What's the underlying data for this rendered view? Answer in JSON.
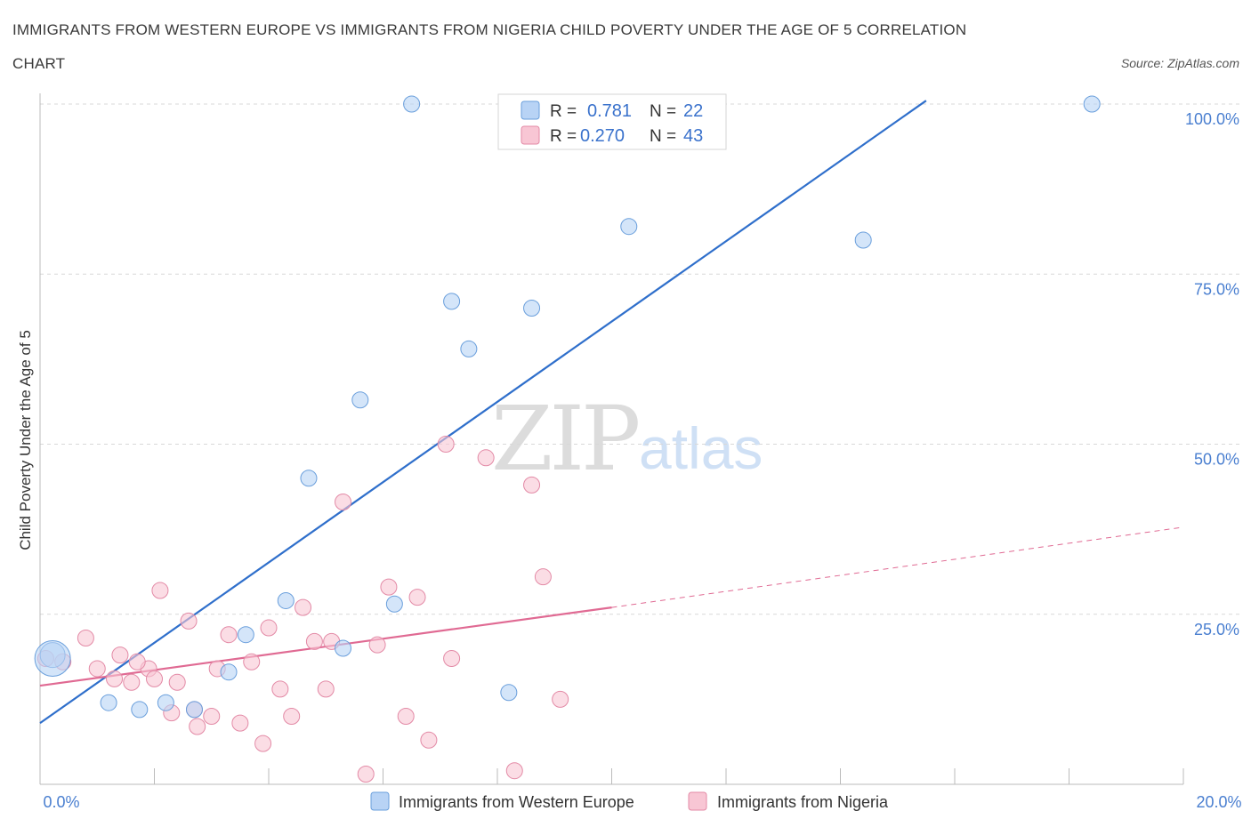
{
  "title_line1": "IMMIGRANTS FROM WESTERN EUROPE VS IMMIGRANTS FROM NIGERIA CHILD POVERTY UNDER THE AGE OF 5 CORRELATION",
  "title_line2": "CHART",
  "source": "Source: ZipAtlas.com",
  "watermark": {
    "zip": "ZIP",
    "atlas": "atlas"
  },
  "colors": {
    "blue_fill": "#b8d3f5",
    "blue_stroke": "#6a9fdc",
    "blue_line": "#2f6fcb",
    "pink_fill": "#f8c6d4",
    "pink_stroke": "#e38aa6",
    "pink_line": "#e06a93",
    "grid": "#d8d8d8",
    "axis": "#bbbbbb"
  },
  "legend": {
    "r_label": "R =",
    "n_label": "N =",
    "entries": [
      {
        "series": "Immigrants from Western Europe",
        "r": "0.781",
        "n": "22"
      },
      {
        "series": "Immigrants from Nigeria",
        "r": "0.270",
        "n": "43"
      }
    ]
  },
  "chart_data": {
    "type": "scatter",
    "title": "IMMIGRANTS FROM WESTERN EUROPE VS IMMIGRANTS FROM NIGERIA CHILD POVERTY UNDER THE AGE OF 5 CORRELATION CHART",
    "xlabel": "",
    "ylabel": "Child Poverty Under the Age of 5",
    "xlim": [
      0,
      20
    ],
    "ylim": [
      0,
      100
    ],
    "x_tick_labels": [
      {
        "value": 0,
        "label": "0.0%"
      },
      {
        "value": 20,
        "label": "20.0%"
      }
    ],
    "y_tick_labels": [
      {
        "value": 25,
        "label": "25.0%"
      },
      {
        "value": 50,
        "label": "50.0%"
      },
      {
        "value": 75,
        "label": "75.0%"
      },
      {
        "value": 100,
        "label": "100.0%"
      }
    ],
    "grid": "horizontal dashed",
    "legend_position": "top-center",
    "series": [
      {
        "name": "Immigrants from Western Europe",
        "color": "#b8d3f5",
        "points": [
          [
            0.22,
            19.0
          ],
          [
            0.22,
            18.5
          ],
          [
            1.2,
            12.0
          ],
          [
            1.74,
            11.0
          ],
          [
            2.2,
            12.0
          ],
          [
            2.7,
            11.0
          ],
          [
            3.3,
            16.5
          ],
          [
            3.6,
            22.0
          ],
          [
            4.3,
            27.0
          ],
          [
            4.7,
            45.0
          ],
          [
            5.3,
            20.0
          ],
          [
            5.6,
            56.5
          ],
          [
            6.2,
            26.5
          ],
          [
            6.5,
            100.0
          ],
          [
            7.2,
            71.0
          ],
          [
            7.5,
            64.0
          ],
          [
            8.2,
            13.5
          ],
          [
            8.6,
            70.0
          ],
          [
            9.0,
            100.0
          ],
          [
            10.3,
            82.0
          ],
          [
            14.4,
            80.0
          ],
          [
            18.4,
            100.0
          ]
        ],
        "sizes": [
          14,
          20,
          9,
          9,
          9,
          9,
          9,
          9,
          9,
          9,
          9,
          9,
          9,
          9,
          9,
          9,
          9,
          9,
          9,
          9,
          9,
          9
        ],
        "trend": {
          "x": [
            0,
            15.5
          ],
          "y": [
            9.0,
            100.5
          ]
        }
      },
      {
        "name": "Immigrants from Nigeria",
        "color": "#f8c6d4",
        "points": [
          [
            0.4,
            18.0
          ],
          [
            0.8,
            21.5
          ],
          [
            1.0,
            17.0
          ],
          [
            1.3,
            15.5
          ],
          [
            1.6,
            15.0
          ],
          [
            1.4,
            19.0
          ],
          [
            1.9,
            17.0
          ],
          [
            2.0,
            15.5
          ],
          [
            2.1,
            28.5
          ],
          [
            2.3,
            10.5
          ],
          [
            2.6,
            24.0
          ],
          [
            2.7,
            11.0
          ],
          [
            2.75,
            8.5
          ],
          [
            3.0,
            10.0
          ],
          [
            3.1,
            17.0
          ],
          [
            3.3,
            22.0
          ],
          [
            3.5,
            9.0
          ],
          [
            3.7,
            18.0
          ],
          [
            3.9,
            6.0
          ],
          [
            4.0,
            23.0
          ],
          [
            4.2,
            14.0
          ],
          [
            4.4,
            10.0
          ],
          [
            4.6,
            26.0
          ],
          [
            4.8,
            21.0
          ],
          [
            5.0,
            14.0
          ],
          [
            5.1,
            21.0
          ],
          [
            5.3,
            41.5
          ],
          [
            5.7,
            1.5
          ],
          [
            5.9,
            20.5
          ],
          [
            6.1,
            29.0
          ],
          [
            6.4,
            10.0
          ],
          [
            6.6,
            27.5
          ],
          [
            6.8,
            6.5
          ],
          [
            7.1,
            50.0
          ],
          [
            7.2,
            18.5
          ],
          [
            7.8,
            48.0
          ],
          [
            8.3,
            2.0
          ],
          [
            8.6,
            44.0
          ],
          [
            8.8,
            30.5
          ],
          [
            9.1,
            12.5
          ],
          [
            0.1,
            18.5
          ],
          [
            1.7,
            18.0
          ],
          [
            2.4,
            15.0
          ]
        ],
        "sizes": [
          9,
          9,
          9,
          9,
          9,
          9,
          9,
          9,
          9,
          9,
          9,
          9,
          9,
          9,
          9,
          9,
          9,
          9,
          9,
          9,
          9,
          9,
          9,
          9,
          9,
          9,
          9,
          9,
          9,
          9,
          9,
          9,
          9,
          9,
          9,
          9,
          9,
          9,
          9,
          9,
          9,
          9,
          9
        ],
        "trend_solid": {
          "x": [
            0,
            10
          ],
          "y": [
            14.5,
            26.0
          ]
        },
        "trend_dashed": {
          "x": [
            10,
            20
          ],
          "y": [
            26.0,
            37.8
          ]
        }
      }
    ]
  }
}
